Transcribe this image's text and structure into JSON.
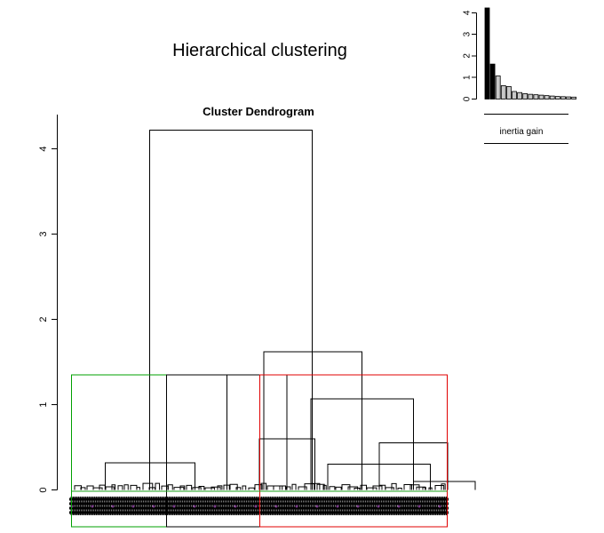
{
  "title": "Hierarchical clustering",
  "chart_data": [
    {
      "type": "dendrogram",
      "title": "Cluster Dendrogram",
      "xlabel": "",
      "ylabel": "",
      "ylim": [
        0,
        4.4
      ],
      "yticks": [
        "0",
        "1",
        "2",
        "3",
        "4"
      ],
      "cut_height": 1.35,
      "n_clusters": 3,
      "cluster_colors": [
        "#00a000",
        "#000000",
        "#e00000"
      ],
      "leaf_mark_color": "#000000",
      "node_color": "#000000",
      "merges": [
        {
          "left": 0.4,
          "right": 1.45,
          "height": 0.32
        },
        {
          "left": 2.2,
          "right": 2.85,
          "height": 0.6
        },
        {
          "left": 1.82,
          "right": 2.52,
          "height": 1.35
        },
        {
          "left": 3.0,
          "right": 4.2,
          "height": 0.3
        },
        {
          "left": 4.0,
          "right": 4.72,
          "height": 0.1
        },
        {
          "left": 3.6,
          "right": 4.4,
          "height": 0.55
        },
        {
          "left": 2.8,
          "right": 4.0,
          "height": 1.07
        },
        {
          "left": 2.25,
          "right": 3.4,
          "height": 1.62
        },
        {
          "left": 0.92,
          "right": 2.82,
          "height": 4.22
        }
      ]
    },
    {
      "type": "bar",
      "title": "",
      "xlabel": "inertia gain",
      "ylabel": "",
      "ylim": [
        0,
        4.3
      ],
      "yticks": [
        "0",
        "1",
        "2",
        "3",
        "4"
      ],
      "values": [
        4.22,
        1.62,
        1.07,
        0.62,
        0.58,
        0.35,
        0.3,
        0.25,
        0.22,
        0.2,
        0.18,
        0.16,
        0.14,
        0.12,
        0.11,
        0.1,
        0.09
      ],
      "highlight_count": 2,
      "colors": {
        "highlight": "#000000",
        "other": "#c8c8c8",
        "border": "#000000"
      }
    }
  ]
}
